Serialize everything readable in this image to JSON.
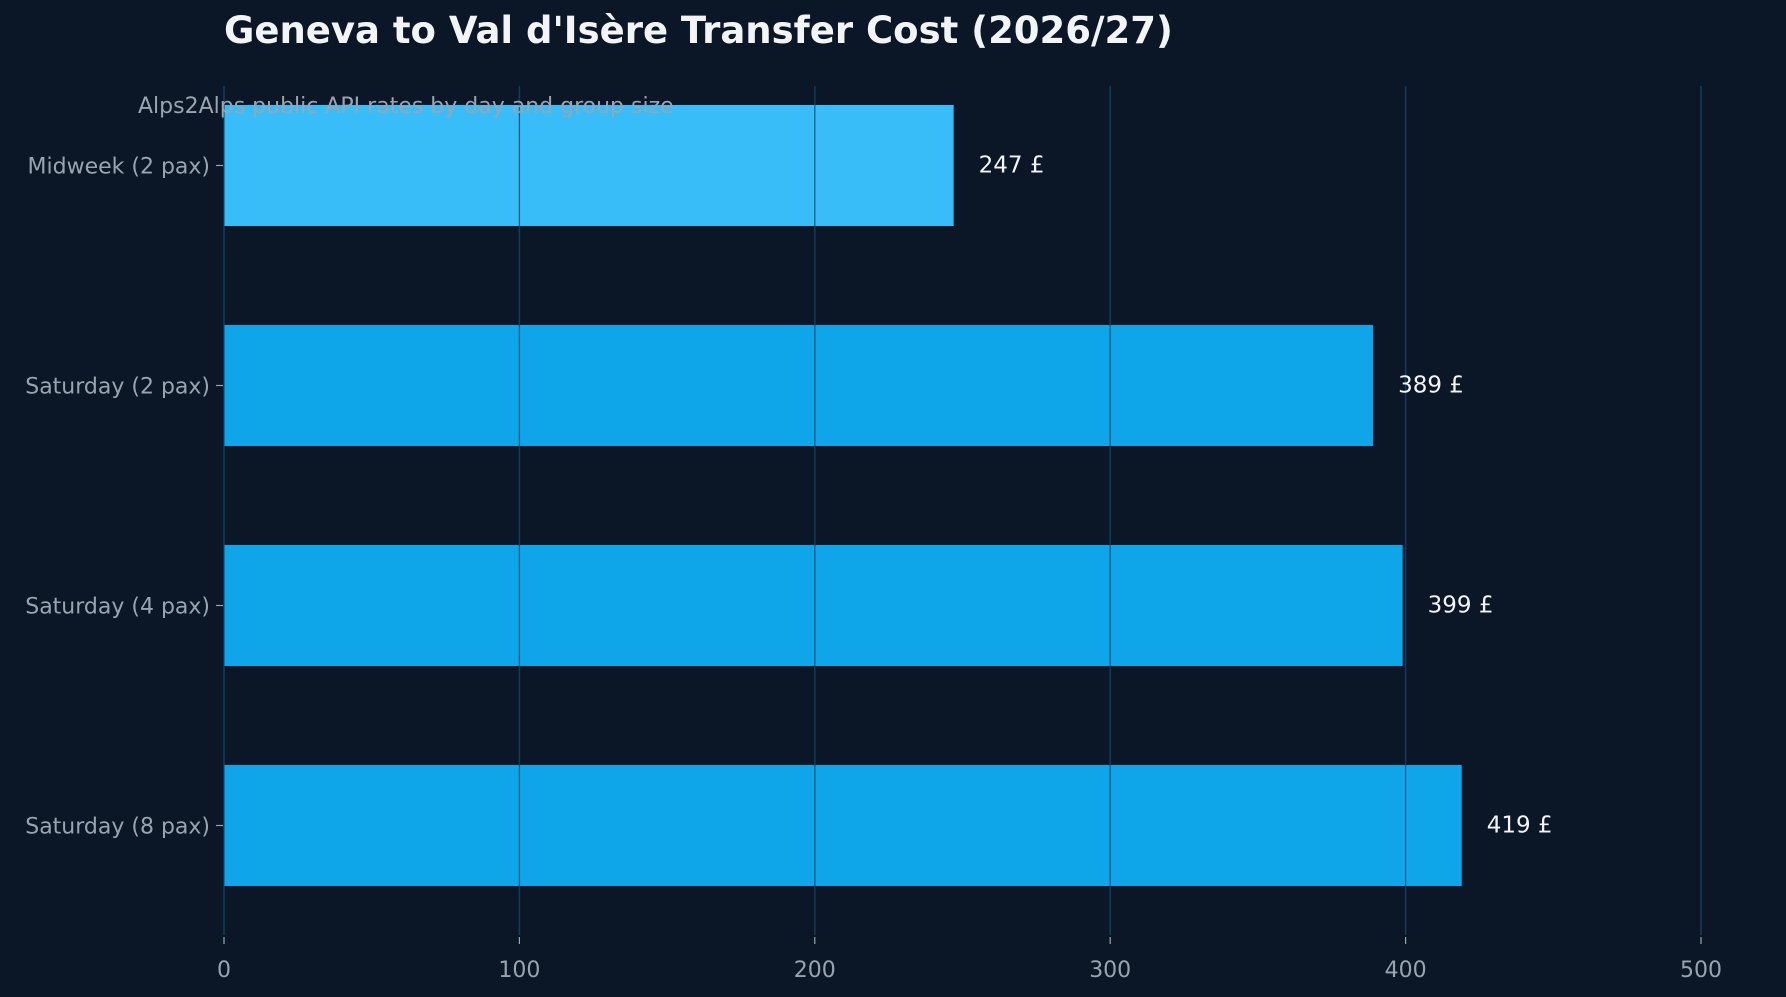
{
  "chart_data": {
    "type": "bar",
    "orientation": "horizontal",
    "title": "Geneva to Val d'Isère Transfer Cost (2026/27)",
    "subtitle": "Alps2Alps public API rates by day and group size",
    "xlabel": "",
    "ylabel": "",
    "categories": [
      "Midweek (2 pax)",
      "Saturday (2 pax)",
      "Saturday (4 pax)",
      "Saturday (8 pax)"
    ],
    "values": [
      247,
      389,
      399,
      419
    ],
    "value_labels": [
      "247 £",
      "389 £",
      "399 £",
      "419 £"
    ],
    "xlim": [
      0,
      500
    ],
    "xticks": [
      0,
      100,
      200,
      300,
      400,
      500
    ],
    "xtick_labels": [
      "0",
      "100",
      "200",
      "300",
      "400",
      "500"
    ],
    "grid": "vertical",
    "legend": "none"
  },
  "colors": {
    "background": "#0b1626",
    "bar_highlight": "#38bdf8",
    "bar": "#0ea5e9",
    "gridline": "#1d3a52",
    "title": "#f2f4f7",
    "subtitle": "#9aa4b1",
    "tick_label": "#9aa4b1",
    "data_label": "#f2f4f7"
  }
}
